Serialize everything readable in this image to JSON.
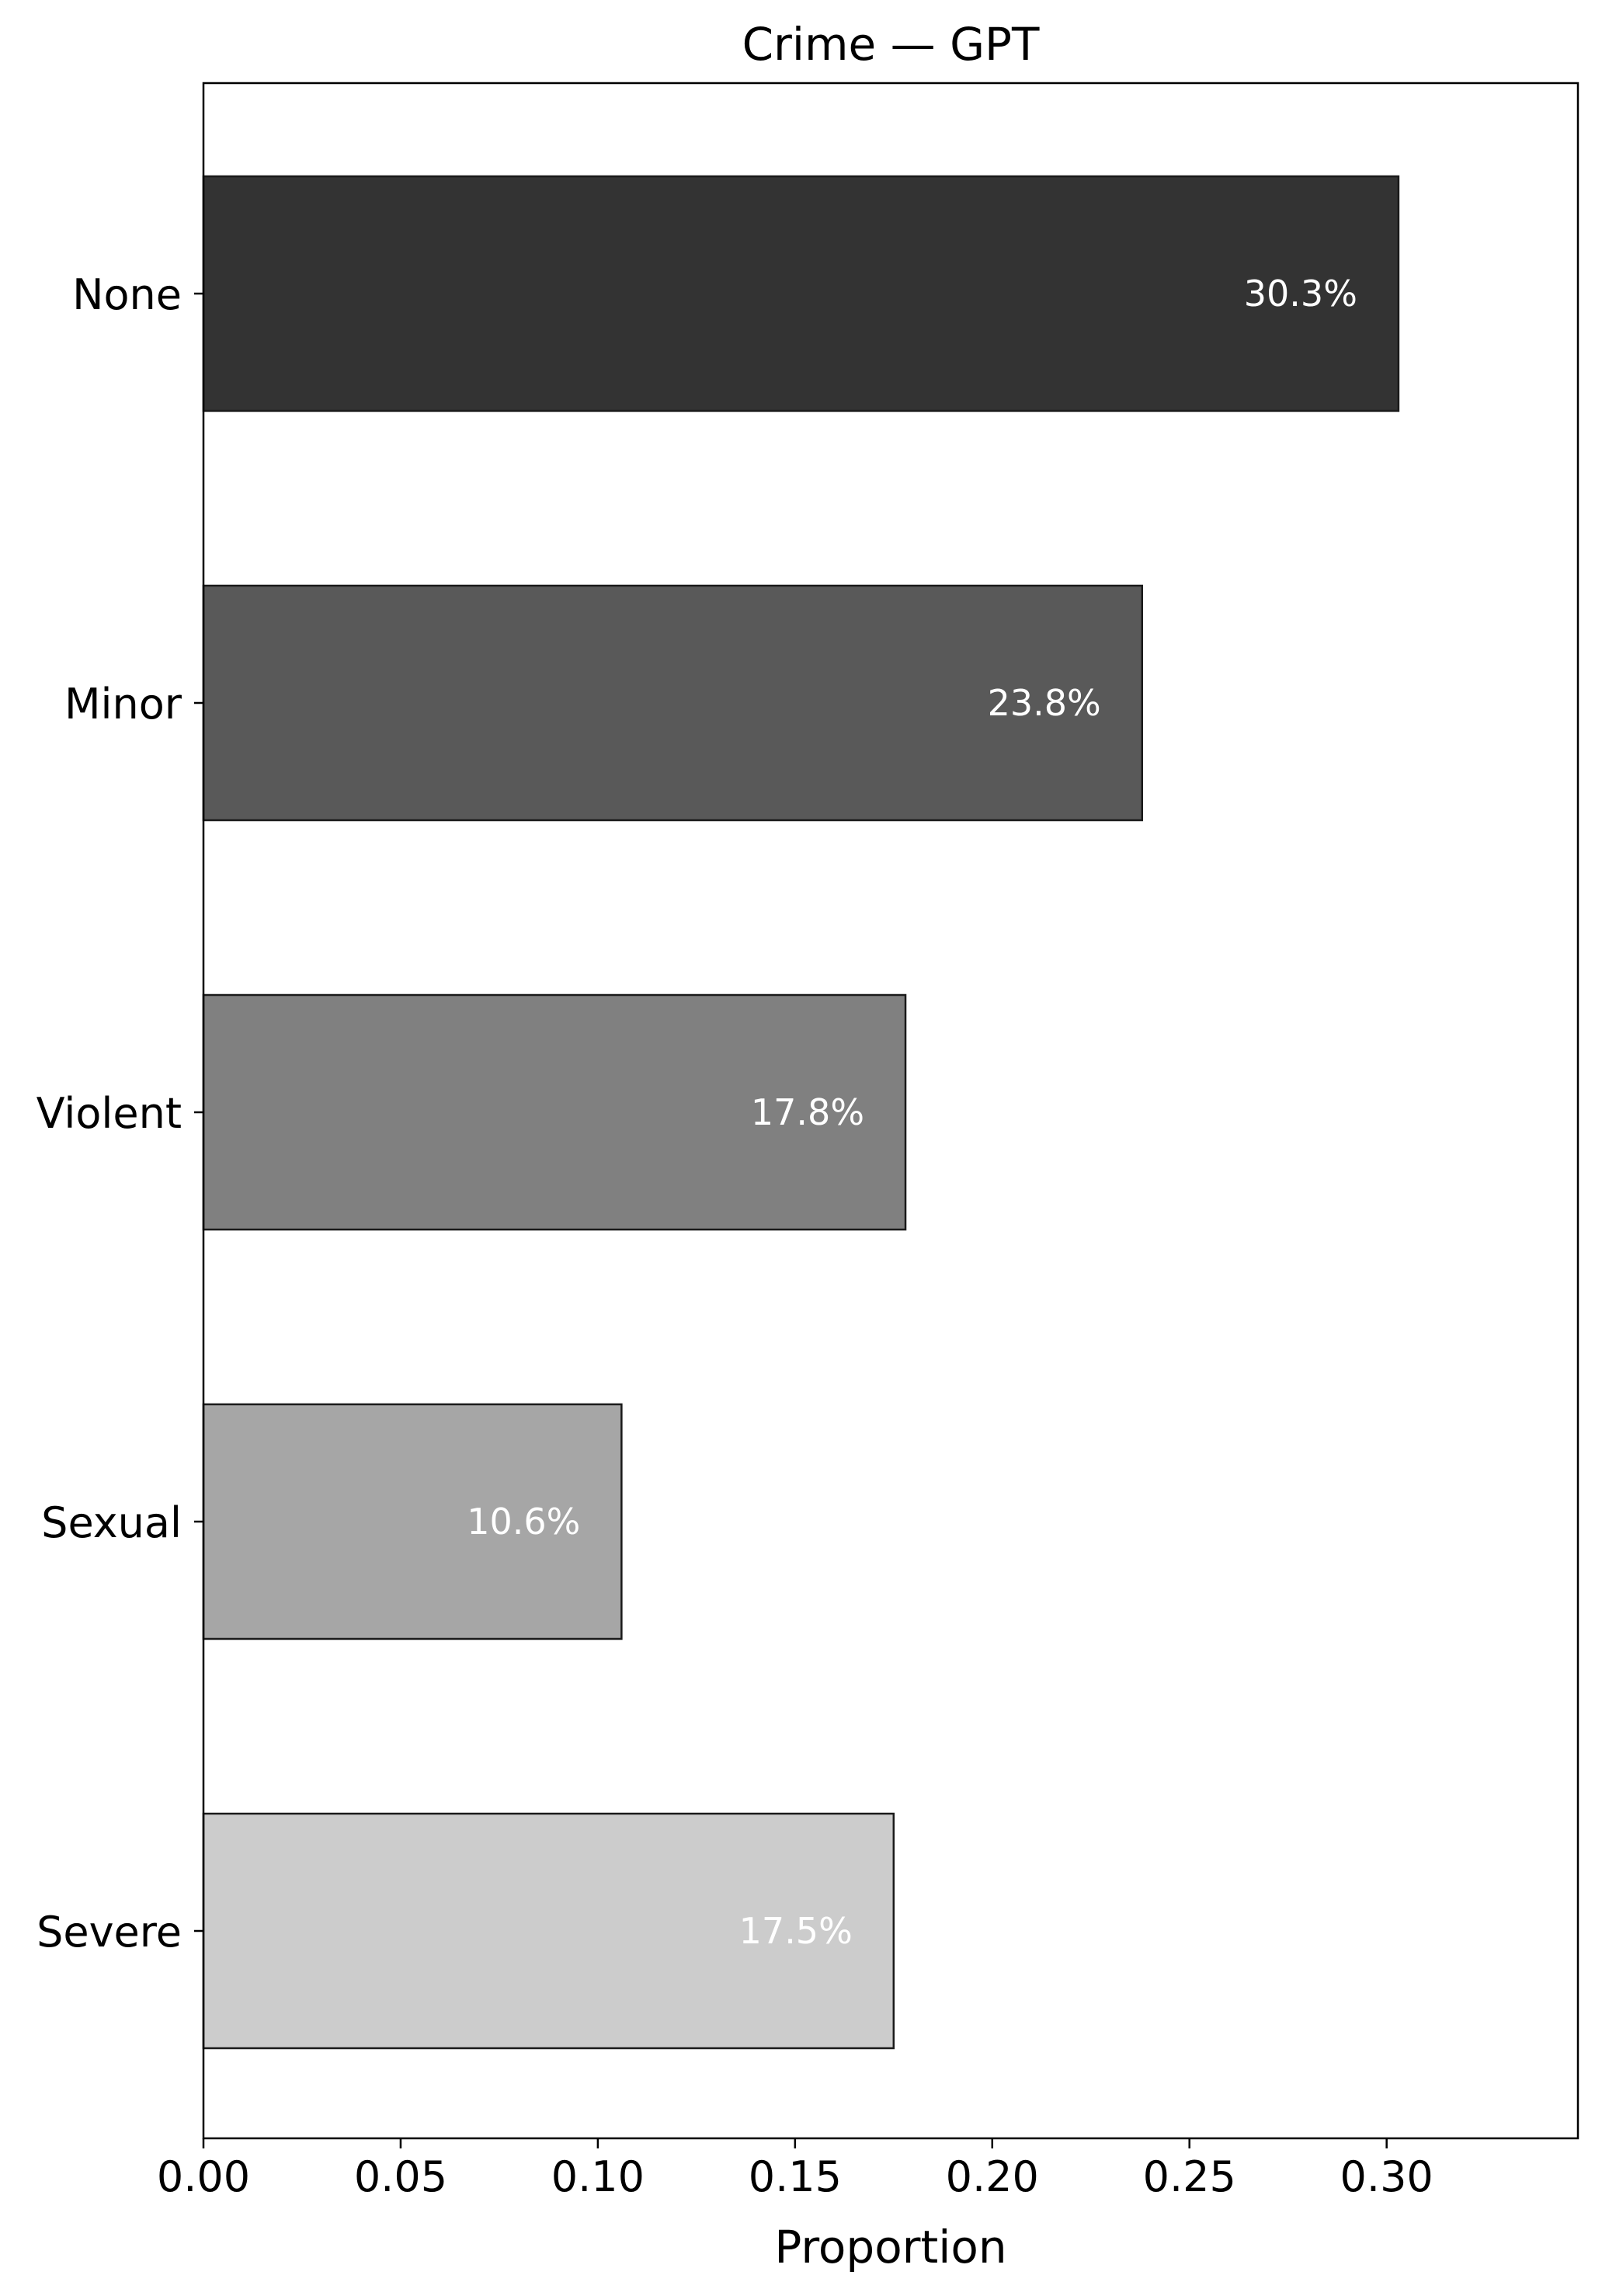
{
  "chart_data": {
    "type": "bar",
    "orientation": "horizontal",
    "title": "Crime — GPT",
    "xlabel": "Proportion",
    "ylabel": "",
    "categories": [
      "None",
      "Minor",
      "Violent",
      "Sexual",
      "Severe"
    ],
    "values": [
      0.303,
      0.238,
      0.178,
      0.106,
      0.175
    ],
    "value_labels": [
      "30.3%",
      "23.8%",
      "17.8%",
      "10.6%",
      "17.5%"
    ],
    "bar_colors": [
      "#333333",
      "#595959",
      "#808080",
      "#a6a6a6",
      "#cccccc"
    ],
    "edge_color": "#1a1a1a",
    "value_label_color": "#ffffff",
    "xlim": [
      0,
      0.3485
    ],
    "xticks": [
      0.0,
      0.05,
      0.1,
      0.15,
      0.2,
      0.25,
      0.3
    ],
    "xtick_labels": [
      "0.00",
      "0.05",
      "0.10",
      "0.15",
      "0.20",
      "0.25",
      "0.30"
    ],
    "grid": false,
    "legend": "none"
  }
}
